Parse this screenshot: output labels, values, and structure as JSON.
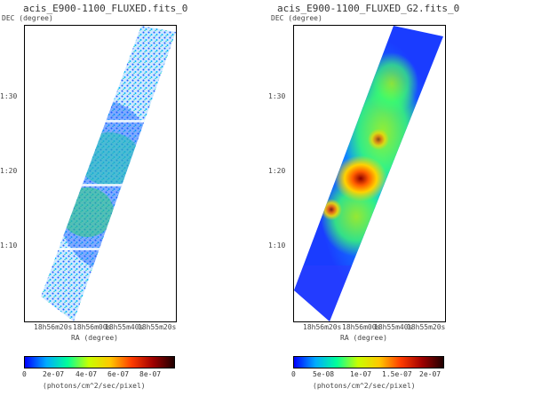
{
  "panels": [
    {
      "title": "acis_E900-1100_FLUXED.fits_0",
      "ylabel": "DEC (degree)",
      "xlabel": "RA (degree)",
      "y_ticks": [
        "1:30",
        "1:20",
        "1:10"
      ],
      "x_ticks": [
        "18h56m20s",
        "18h56m00s",
        "18h55m40s",
        "18h55m20s"
      ],
      "colorbar": {
        "labels": [
          "0",
          "2e-07",
          "4e-07",
          "6e-07",
          "8e-07"
        ],
        "units": "(photons/cm^2/sec/pixel)"
      }
    },
    {
      "title": "acis_E900-1100_FLUXED_G2.fits_0",
      "ylabel": "DEC (degree)",
      "xlabel": "RA (degree)",
      "y_ticks": [
        "1:30",
        "1:20",
        "1:10"
      ],
      "x_ticks": [
        "18h56m20s",
        "18h56m00s",
        "18h55m40s",
        "18h55m20s"
      ],
      "colorbar": {
        "labels": [
          "0",
          "5e-08",
          "1e-07",
          "1.5e-07",
          "2e-07"
        ],
        "units": "(photons/cm^2/sec/pixel)"
      }
    }
  ],
  "colormap": [
    "#0000ff",
    "#0055ff",
    "#00aaff",
    "#00e0ff",
    "#00ff9a",
    "#40ff40",
    "#c8ff00",
    "#ffff00",
    "#ffc800",
    "#ff8c00",
    "#ff3c00",
    "#dc0000",
    "#a00000",
    "#640000",
    "#200000"
  ]
}
